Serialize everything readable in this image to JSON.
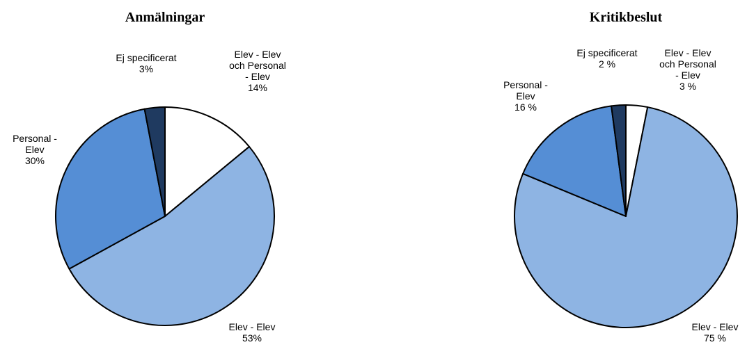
{
  "chart_data": [
    {
      "type": "pie",
      "title": "Anmälningar",
      "categories": [
        "Elev - Elev och Personal - Elev",
        "Elev - Elev",
        "Personal - Elev",
        "Ej specificerat"
      ],
      "values": [
        14,
        53,
        30,
        3
      ],
      "value_labels": [
        "14%",
        "53%",
        "30%",
        "3%"
      ],
      "colors": [
        "#ffffff",
        "#8eb4e3",
        "#558ed5",
        "#1f3a60"
      ]
    },
    {
      "type": "pie",
      "title": "Kritikbeslut",
      "categories": [
        "Elev - Elev och Personal - Elev",
        "Elev - Elev",
        "Personal - Elev",
        "Ej specificerat"
      ],
      "values": [
        3,
        75,
        16,
        2
      ],
      "value_labels": [
        "3 %",
        "75 %",
        "16 %",
        "2 %"
      ],
      "colors": [
        "#ffffff",
        "#8eb4e3",
        "#558ed5",
        "#1f3a60"
      ]
    }
  ]
}
